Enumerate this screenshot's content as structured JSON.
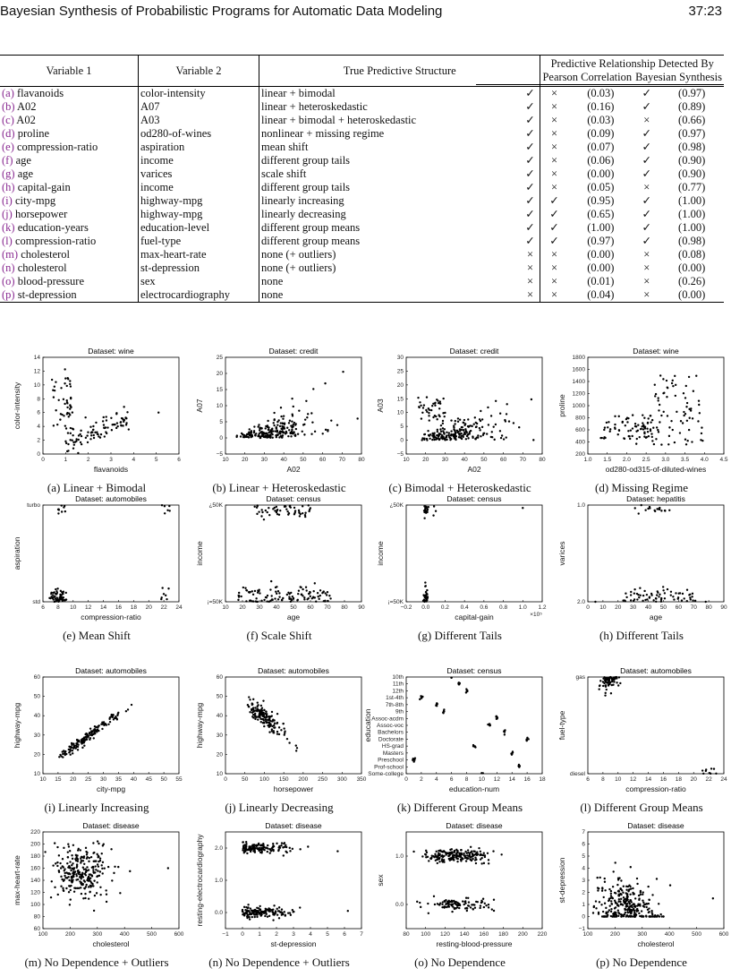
{
  "header": {
    "title": "Bayesian Synthesis of Probabilistic Programs for Automatic Data Modeling",
    "page": "37:23"
  },
  "table": {
    "col_var1": "Variable 1",
    "col_var2": "Variable 2",
    "col_true": "True Predictive Structure",
    "col_detected": "Predictive Relationship Detected By",
    "col_pearson": "Pearson Correlation",
    "col_bayes": "Bayesian Synthesis",
    "rows": [
      {
        "label": "(a)",
        "v1": "flavanoids",
        "v2": "color-intensity",
        "truth": "linear + bimodal",
        "chk": "✓",
        "p": "×",
        "pv": "(0.03)",
        "b": "✓",
        "bv": "(0.97)"
      },
      {
        "label": "(b)",
        "v1": "A02",
        "v2": "A07",
        "truth": "linear + heteroskedastic",
        "chk": "✓",
        "p": "×",
        "pv": "(0.16)",
        "b": "✓",
        "bv": "(0.89)"
      },
      {
        "label": "(c)",
        "v1": "A02",
        "v2": "A03",
        "truth": "linear + bimodal + heteroskedastic",
        "chk": "✓",
        "p": "×",
        "pv": "(0.03)",
        "b": "×",
        "bv": "(0.66)"
      },
      {
        "label": "(d)",
        "v1": "proline",
        "v2": "od280-of-wines",
        "truth": "nonlinear + missing regime",
        "chk": "✓",
        "p": "×",
        "pv": "(0.09)",
        "b": "✓",
        "bv": "(0.97)"
      },
      {
        "label": "(e)",
        "v1": "compression-ratio",
        "v2": "aspiration",
        "truth": "mean shift",
        "chk": "✓",
        "p": "×",
        "pv": "(0.07)",
        "b": "✓",
        "bv": "(0.98)"
      },
      {
        "label": "(f)",
        "v1": "age",
        "v2": "income",
        "truth": "different group tails",
        "chk": "✓",
        "p": "×",
        "pv": "(0.06)",
        "b": "✓",
        "bv": "(0.90)"
      },
      {
        "label": "(g)",
        "v1": "age",
        "v2": "varices",
        "truth": "scale shift",
        "chk": "✓",
        "p": "×",
        "pv": "(0.00)",
        "b": "✓",
        "bv": "(0.90)"
      },
      {
        "label": "(h)",
        "v1": "capital-gain",
        "v2": "income",
        "truth": "different group tails",
        "chk": "✓",
        "p": "×",
        "pv": "(0.05)",
        "b": "×",
        "bv": "(0.77)"
      },
      {
        "label": "(i)",
        "v1": "city-mpg",
        "v2": "highway-mpg",
        "truth": "linearly increasing",
        "chk": "✓",
        "p": "✓",
        "pv": "(0.95)",
        "b": "✓",
        "bv": "(1.00)"
      },
      {
        "label": "(j)",
        "v1": "horsepower",
        "v2": "highway-mpg",
        "truth": "linearly decreasing",
        "chk": "✓",
        "p": "✓",
        "pv": "(0.65)",
        "b": "✓",
        "bv": "(1.00)"
      },
      {
        "label": "(k)",
        "v1": "education-years",
        "v2": "education-level",
        "truth": "different group means",
        "chk": "✓",
        "p": "✓",
        "pv": "(1.00)",
        "b": "✓",
        "bv": "(1.00)"
      },
      {
        "label": "(l)",
        "v1": "compression-ratio",
        "v2": "fuel-type",
        "truth": "different group means",
        "chk": "✓",
        "p": "✓",
        "pv": "(0.97)",
        "b": "✓",
        "bv": "(0.98)"
      },
      {
        "label": "(m)",
        "v1": "cholesterol",
        "v2": "max-heart-rate",
        "truth": "none (+ outliers)",
        "chk": "×",
        "p": "×",
        "pv": "(0.00)",
        "b": "×",
        "bv": "(0.08)"
      },
      {
        "label": "(n)",
        "v1": "cholesterol",
        "v2": "st-depression",
        "truth": "none (+ outliers)",
        "chk": "×",
        "p": "×",
        "pv": "(0.00)",
        "b": "×",
        "bv": "(0.00)"
      },
      {
        "label": "(o)",
        "v1": "blood-pressure",
        "v2": "sex",
        "truth": "none",
        "chk": "×",
        "p": "×",
        "pv": "(0.01)",
        "b": "×",
        "bv": "(0.26)"
      },
      {
        "label": "(p)",
        "v1": "st-depression",
        "v2": "electrocardiography",
        "truth": "none",
        "chk": "×",
        "p": "×",
        "pv": "(0.04)",
        "b": "×",
        "bv": "(0.00)"
      }
    ]
  },
  "figures": [
    {
      "id": "a",
      "title": "Dataset: wine",
      "xlabel": "flavanoids",
      "ylabel": "color-intensity",
      "caption": "(a) Linear + Bimodal",
      "xticks": [
        "0",
        "1",
        "2",
        "3",
        "4",
        "5",
        "6"
      ],
      "yticks": [
        "0",
        "2",
        "4",
        "6",
        "8",
        "10",
        "12",
        "14"
      ],
      "xr": [
        0,
        6
      ],
      "yr": [
        0,
        14
      ],
      "pattern": "bimodal"
    },
    {
      "id": "b",
      "title": "Dataset: credit",
      "xlabel": "A02",
      "ylabel": "A07",
      "caption": "(b) Linear + Heteroskedastic",
      "xticks": [
        "10",
        "20",
        "30",
        "40",
        "50",
        "60",
        "70",
        "80"
      ],
      "yticks": [
        "−5",
        "0",
        "5",
        "10",
        "15",
        "20",
        "25"
      ],
      "xr": [
        10,
        80
      ],
      "yr": [
        -5,
        25
      ],
      "pattern": "hetero"
    },
    {
      "id": "c",
      "title": "Dataset: credit",
      "xlabel": "A02",
      "ylabel": "A03",
      "caption": "(c) Bimodal + Heteroskedastic",
      "xticks": [
        "10",
        "20",
        "30",
        "40",
        "50",
        "60",
        "70",
        "80"
      ],
      "yticks": [
        "−5",
        "0",
        "5",
        "10",
        "15",
        "20",
        "25",
        "30"
      ],
      "xr": [
        10,
        80
      ],
      "yr": [
        -5,
        30
      ],
      "pattern": "hetero2"
    },
    {
      "id": "d",
      "title": "Dataset: wine",
      "xlabel": "od280-od315-of-diluted-wines",
      "ylabel": "proline",
      "caption": "(d) Missing Regime",
      "xticks": [
        "1.0",
        "1.5",
        "2.0",
        "2.5",
        "3.0",
        "3.5",
        "4.0",
        "4.5"
      ],
      "yticks": [
        "200",
        "400",
        "600",
        "800",
        "1000",
        "1200",
        "1400",
        "1600",
        "1800"
      ],
      "xr": [
        1,
        4.5
      ],
      "yr": [
        200,
        1800
      ],
      "pattern": "missing"
    },
    {
      "id": "e",
      "title": "Dataset: automobiles",
      "xlabel": "compression-ratio",
      "ylabel": "aspiration",
      "caption": "(e) Mean Shift",
      "xticks": [
        "6",
        "8",
        "10",
        "12",
        "14",
        "16",
        "18",
        "20",
        "22",
        "24"
      ],
      "yticks": [
        "std",
        "turbo"
      ],
      "xr": [
        6,
        24
      ],
      "yr": [
        0,
        1
      ],
      "pattern": "cat2mean"
    },
    {
      "id": "f",
      "title": "Dataset: census",
      "xlabel": "age",
      "ylabel": "income",
      "caption": "(f) Scale Shift",
      "xticks": [
        "10",
        "20",
        "30",
        "40",
        "50",
        "60",
        "70",
        "80",
        "90"
      ],
      "yticks": [
        "¡=50K",
        "¿50K"
      ],
      "xr": [
        10,
        90
      ],
      "yr": [
        0,
        1
      ],
      "pattern": "cat2scale"
    },
    {
      "id": "g",
      "title": "Dataset: census",
      "xlabel": "capital-gain",
      "ylabel": "income",
      "caption": "(g) Different Tails",
      "xticks": [
        "−0.2",
        "0.0",
        "0.2",
        "0.4",
        "0.6",
        "0.8",
        "1.0",
        "1.2"
      ],
      "yticks": [
        "¡=50K",
        "¿50K"
      ],
      "xr": [
        -0.2,
        1.2
      ],
      "yr": [
        0,
        1
      ],
      "pattern": "cat2tails",
      "xmult": "×10⁵"
    },
    {
      "id": "h",
      "title": "Dataset: hepatitis",
      "xlabel": "age",
      "ylabel": "varices",
      "caption": "(h) Different Tails",
      "xticks": [
        "0",
        "10",
        "20",
        "30",
        "40",
        "50",
        "60",
        "70",
        "80",
        "90"
      ],
      "yticks": [
        "2.0",
        "1.0"
      ],
      "xr": [
        0,
        90
      ],
      "yr": [
        0,
        1
      ],
      "pattern": "cat2hep"
    },
    {
      "id": "i",
      "title": "Dataset: automobiles",
      "xlabel": "city-mpg",
      "ylabel": "highway-mpg",
      "caption": "(i) Linearly Increasing",
      "xticks": [
        "10",
        "15",
        "20",
        "25",
        "30",
        "35",
        "40",
        "45",
        "50",
        "55"
      ],
      "yticks": [
        "10",
        "20",
        "30",
        "40",
        "50",
        "60"
      ],
      "xr": [
        10,
        55
      ],
      "yr": [
        10,
        60
      ],
      "pattern": "linup"
    },
    {
      "id": "j",
      "title": "Dataset: automobiles",
      "xlabel": "horsepower",
      "ylabel": "highway-mpg",
      "caption": "(j) Linearly Decreasing",
      "xticks": [
        "0",
        "50",
        "100",
        "150",
        "200",
        "250",
        "300",
        "350"
      ],
      "yticks": [
        "10",
        "20",
        "30",
        "40",
        "50",
        "60"
      ],
      "xr": [
        0,
        350
      ],
      "yr": [
        10,
        60
      ],
      "pattern": "lindown"
    },
    {
      "id": "k",
      "title": "Dataset: census",
      "xlabel": "education-num",
      "ylabel": "education",
      "caption": "(k) Different Group Means",
      "xticks": [
        "0",
        "2",
        "4",
        "6",
        "8",
        "10",
        "12",
        "14",
        "16",
        "18"
      ],
      "yticks": [
        "10th",
        "11th",
        "12th",
        "1st-4th",
        "7th-8th",
        "9th",
        "Assoc-acdm",
        "Assoc-voc",
        "Bachelors",
        "Doctorate",
        "HS-grad",
        "Masters",
        "Preschool",
        "Prof-school",
        "Some-college"
      ],
      "xr": [
        0,
        18
      ],
      "yr": [
        0,
        14
      ],
      "pattern": "edu"
    },
    {
      "id": "l",
      "title": "Dataset: automobiles",
      "xlabel": "compression-ratio",
      "ylabel": "fuel-type",
      "caption": "(l) Different Group Means",
      "xticks": [
        "6",
        "8",
        "10",
        "12",
        "14",
        "16",
        "18",
        "20",
        "22",
        "24"
      ],
      "yticks": [
        "diesel",
        "gas"
      ],
      "xr": [
        6,
        24
      ],
      "yr": [
        0,
        1
      ],
      "pattern": "fuel"
    },
    {
      "id": "m",
      "title": "Dataset: disease",
      "xlabel": "cholesterol",
      "ylabel": "max-heart-rate",
      "caption": "(m) No Dependence + Outliers",
      "xticks": [
        "100",
        "200",
        "300",
        "400",
        "500",
        "600"
      ],
      "yticks": [
        "60",
        "80",
        "100",
        "120",
        "140",
        "160",
        "180",
        "200",
        "220"
      ],
      "xr": [
        100,
        600
      ],
      "yr": [
        60,
        220
      ],
      "pattern": "blob"
    },
    {
      "id": "n",
      "title": "Dataset: disease",
      "xlabel": "st-depression",
      "ylabel": "resting-electrocardiography",
      "caption": "(n) No Dependence + Outliers",
      "xticks": [
        "−1",
        "0",
        "1",
        "2",
        "3",
        "4",
        "5",
        "6",
        "7"
      ],
      "yticks": [
        "0.0",
        "1.0",
        "2.0"
      ],
      "xr": [
        -1,
        7
      ],
      "yr": [
        -0.5,
        2.5
      ],
      "pattern": "ecg"
    },
    {
      "id": "o",
      "title": "Dataset: disease",
      "xlabel": "resting-blood-pressure",
      "ylabel": "sex",
      "caption": "(o) No Dependence",
      "xticks": [
        "80",
        "100",
        "120",
        "140",
        "160",
        "180",
        "200",
        "220"
      ],
      "yticks": [
        "0.0",
        "1.0"
      ],
      "xr": [
        80,
        220
      ],
      "yr": [
        -0.5,
        1.5
      ],
      "pattern": "sex"
    },
    {
      "id": "p",
      "title": "Dataset: disease",
      "xlabel": "cholesterol",
      "ylabel": "st-depression",
      "caption": "(p) No Dependence",
      "xticks": [
        "100",
        "200",
        "300",
        "400",
        "500",
        "600"
      ],
      "yticks": [
        "−1",
        "0",
        "1",
        "2",
        "3",
        "4",
        "5",
        "6",
        "7"
      ],
      "xr": [
        100,
        600
      ],
      "yr": [
        -1,
        7
      ],
      "pattern": "stdep"
    }
  ]
}
